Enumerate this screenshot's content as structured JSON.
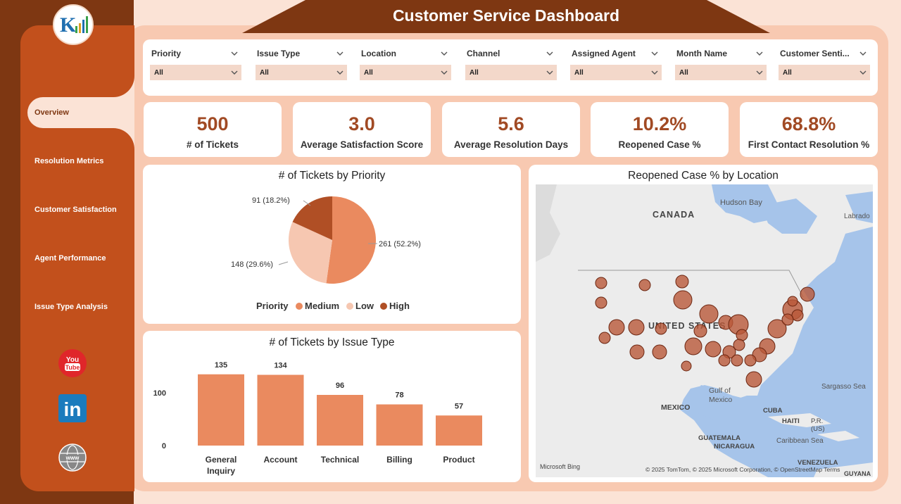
{
  "header": {
    "title": "Customer Service Dashboard"
  },
  "logo": {
    "icon": "logo-icon"
  },
  "nav": {
    "items": [
      {
        "label": "Overview",
        "active": true
      },
      {
        "label": "Resolution Metrics",
        "active": false
      },
      {
        "label": "Customer Satisfaction",
        "active": false
      },
      {
        "label": "Agent Performance",
        "active": false
      },
      {
        "label": "Issue Type Analysis",
        "active": false
      }
    ]
  },
  "social": {
    "youtube": "youtube-icon",
    "linkedin": "linkedin-icon",
    "web": "globe-icon"
  },
  "filters": [
    {
      "label": "Priority",
      "value": "All"
    },
    {
      "label": "Issue Type",
      "value": "All"
    },
    {
      "label": "Location",
      "value": "All"
    },
    {
      "label": "Channel",
      "value": "All"
    },
    {
      "label": "Assigned Agent",
      "value": "All"
    },
    {
      "label": "Month Name",
      "value": "All"
    },
    {
      "label": "Customer Senti...",
      "value": "All"
    }
  ],
  "kpis": [
    {
      "value": "500",
      "label": "# of Tickets"
    },
    {
      "value": "3.0",
      "label": "Average Satisfaction Score"
    },
    {
      "value": "5.6",
      "label": "Average Resolution Days"
    },
    {
      "value": "10.2%",
      "label": "Reopened Case %"
    },
    {
      "value": "68.8%",
      "label": "First Contact Resolution %"
    }
  ],
  "colors": {
    "medium": "#ea8a5f",
    "low": "#f6c7b1",
    "high": "#b04f25",
    "bar": "#ea8a5f",
    "accent": "#7e3712",
    "sidebar": "#c2501c"
  },
  "chart_data": [
    {
      "type": "pie",
      "title": "# of Tickets by Priority",
      "legend_title": "Priority",
      "legend_position": "bottom",
      "slices": [
        {
          "name": "Medium",
          "value": 261,
          "label": "261 (52.2%)"
        },
        {
          "name": "Low",
          "value": 148,
          "label": "148 (29.6%)"
        },
        {
          "name": "High",
          "value": 91,
          "label": "91 (18.2%)"
        }
      ]
    },
    {
      "type": "bar",
      "title": "# of Tickets by Issue Type",
      "categories": [
        "General Inquiry",
        "Account",
        "Technical",
        "Billing",
        "Product"
      ],
      "values": [
        135,
        134,
        96,
        78,
        57
      ],
      "yticks": [
        0,
        100
      ],
      "ylim": [
        0,
        140
      ]
    }
  ],
  "map": {
    "title": "Reopened Case % by Location",
    "labels": {
      "canada": "CANADA",
      "hudson": "Hudson Bay",
      "labrador": "Labrado",
      "us": "UNITED STATES",
      "gulf": "Gulf of",
      "gulf2": "Mexico",
      "mexico": "MEXICO",
      "sargasso": "Sargasso Sea",
      "cuba": "CUBA",
      "haiti": "HAITI",
      "pr": "P.R.",
      "pr2": "(US)",
      "guatemala": "GUATEMALA",
      "nicaragua": "NICARAGUA",
      "caribbean": "Caribbean Sea",
      "venezuela": "VENEZUELA",
      "guyana": "GUYANA"
    },
    "attribution": "© 2025 TomTom, © 2025 Microsoft Corporation, © OpenStreetMap  Terms",
    "provider": "Microsoft Bing"
  }
}
